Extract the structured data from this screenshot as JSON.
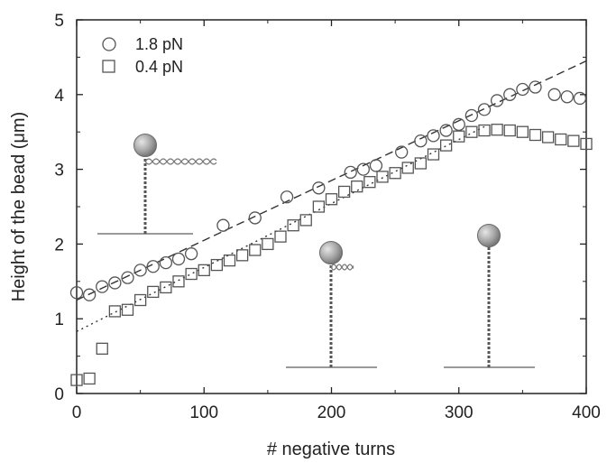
{
  "chart_data": {
    "type": "scatter",
    "title": "",
    "xlabel": "# negative turns",
    "ylabel": "Height of the bead (μm)",
    "xlim": [
      0,
      400
    ],
    "ylim": [
      0,
      5
    ],
    "xticks": [
      0,
      100,
      200,
      300,
      400
    ],
    "yticks": [
      0,
      1,
      2,
      3,
      4,
      5
    ],
    "grid": false,
    "legend_position": "top-left",
    "series": [
      {
        "name": "1.8 pN",
        "marker": "circle",
        "x": [
          0,
          10,
          20,
          30,
          40,
          50,
          60,
          70,
          80,
          90,
          115,
          140,
          165,
          190,
          215,
          225,
          235,
          255,
          270,
          280,
          290,
          300,
          310,
          320,
          330,
          340,
          350,
          360,
          375,
          385,
          395
        ],
        "y": [
          1.35,
          1.32,
          1.43,
          1.48,
          1.55,
          1.65,
          1.7,
          1.75,
          1.8,
          1.87,
          2.25,
          2.35,
          2.63,
          2.75,
          2.96,
          3.0,
          3.05,
          3.23,
          3.38,
          3.45,
          3.52,
          3.6,
          3.72,
          3.8,
          3.92,
          4.0,
          4.07,
          4.1,
          4.0,
          3.97,
          3.95
        ]
      },
      {
        "name": "0.4 pN",
        "marker": "square",
        "x": [
          0,
          10,
          20,
          30,
          40,
          50,
          60,
          70,
          80,
          90,
          100,
          110,
          120,
          130,
          140,
          150,
          160,
          170,
          180,
          190,
          200,
          210,
          220,
          230,
          240,
          250,
          260,
          270,
          280,
          290,
          300,
          310,
          320,
          330,
          340,
          350,
          360,
          370,
          380,
          390,
          400
        ],
        "y": [
          0.18,
          0.2,
          0.6,
          1.1,
          1.12,
          1.25,
          1.36,
          1.42,
          1.5,
          1.6,
          1.65,
          1.72,
          1.78,
          1.85,
          1.92,
          2.0,
          2.1,
          2.25,
          2.32,
          2.5,
          2.6,
          2.7,
          2.77,
          2.83,
          2.9,
          2.95,
          3.02,
          3.08,
          3.2,
          3.32,
          3.44,
          3.5,
          3.52,
          3.53,
          3.52,
          3.5,
          3.46,
          3.43,
          3.4,
          3.38,
          3.34
        ]
      }
    ],
    "fit_lines": [
      {
        "style": "dashed",
        "x": [
          0,
          400
        ],
        "y": [
          1.25,
          4.45
        ]
      },
      {
        "style": "dotted",
        "x": [
          0,
          320
        ],
        "y": [
          0.83,
          3.57
        ]
      }
    ],
    "insets": [
      {
        "type": "bead-supercoil",
        "plectoneme": "long"
      },
      {
        "type": "bead-supercoil",
        "plectoneme": "short"
      },
      {
        "type": "bead-supercoil",
        "plectoneme": "none"
      }
    ]
  }
}
